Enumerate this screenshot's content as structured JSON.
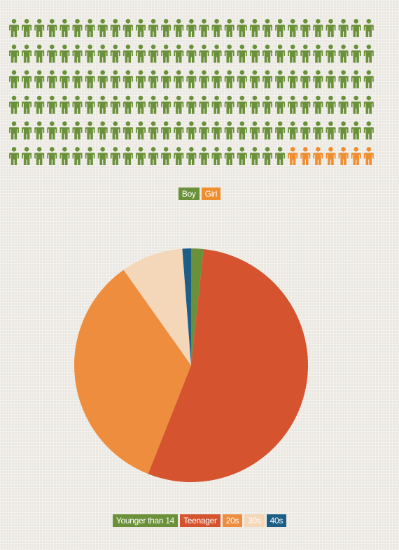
{
  "chart_data": [
    {
      "type": "pictograph",
      "title": "",
      "rows": 6,
      "columns": 29,
      "categories": [
        "Boy",
        "Girl"
      ],
      "values": [
        167,
        7
      ],
      "colors": {
        "Boy": "#6a9139",
        "Girl": "#ef8d2f"
      },
      "legend": [
        {
          "label": "Boy",
          "color": "#6a9139"
        },
        {
          "label": "Girl",
          "color": "#ef8d2f"
        }
      ],
      "legend_position": "bottom-center"
    },
    {
      "type": "pie",
      "title": "",
      "categories": [
        "Younger than 14",
        "Teenager",
        "20s",
        "30s",
        "40s"
      ],
      "values": [
        1.7,
        54.3,
        34.2,
        8.6,
        1.2
      ],
      "colors": {
        "Younger than 14": "#6a9139",
        "Teenager": "#d5532e",
        "20s": "#ef8d3f",
        "30s": "#f4d6b8",
        "40s": "#1d5e86"
      },
      "legend": [
        {
          "label": "Younger than 14",
          "color": "#6a9139"
        },
        {
          "label": "Teenager",
          "color": "#d5532e"
        },
        {
          "label": "20s",
          "color": "#ef8d3f"
        },
        {
          "label": "30s",
          "color": "#f4d6b8"
        },
        {
          "label": "40s",
          "color": "#1d5e86"
        }
      ],
      "start_angle": "top, clockwise",
      "legend_position": "bottom-center"
    }
  ]
}
